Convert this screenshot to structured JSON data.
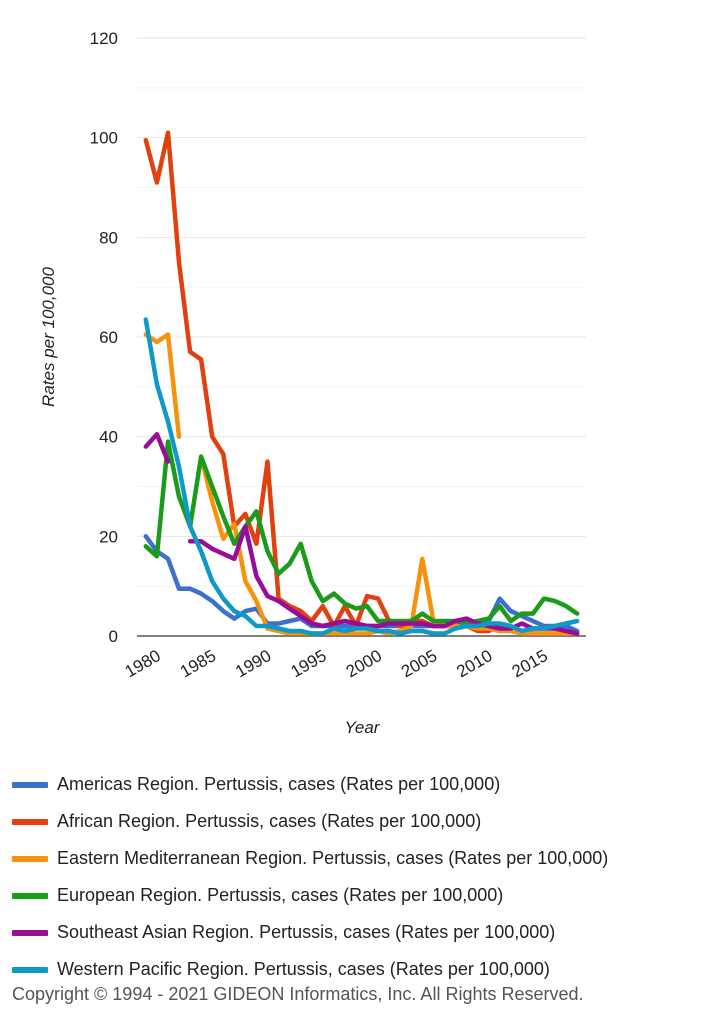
{
  "chart_data": {
    "type": "line",
    "title": "",
    "xlabel": "Year",
    "ylabel": "Rates per 100,000",
    "xlim": [
      1980,
      2019
    ],
    "ylim": [
      0,
      120
    ],
    "y_ticks": [
      "0",
      "20",
      "40",
      "60",
      "80",
      "100",
      "120"
    ],
    "x_ticks": [
      "1980",
      "1985",
      "1990",
      "1995",
      "2000",
      "2005",
      "2010",
      "2015"
    ],
    "grid": true,
    "legend_position": "bottom",
    "x": [
      1980,
      1981,
      1982,
      1983,
      1984,
      1985,
      1986,
      1987,
      1988,
      1989,
      1990,
      1991,
      1992,
      1993,
      1994,
      1995,
      1996,
      1997,
      1998,
      1999,
      2000,
      2001,
      2002,
      2003,
      2004,
      2005,
      2006,
      2007,
      2008,
      2009,
      2010,
      2011,
      2012,
      2013,
      2014,
      2015,
      2016,
      2017,
      2018,
      2019
    ],
    "series": [
      {
        "name": "Americas Region. Pertussis, cases (Rates per 100,000)",
        "color": "#3d6fcc",
        "values": [
          20,
          17,
          15.5,
          9.5,
          9.5,
          8.5,
          7,
          5,
          3.5,
          5,
          5.5,
          2.5,
          2.5,
          3,
          3.5,
          2,
          2,
          2,
          2,
          2,
          2,
          2,
          2,
          2,
          2,
          2,
          2,
          2,
          2,
          2,
          2.5,
          3,
          7.5,
          5,
          4,
          3,
          2,
          2,
          2,
          1
        ]
      },
      {
        "name": "African Region. Pertussis, cases (Rates per 100,000)",
        "color": "#e2400f",
        "values": [
          99.5,
          91,
          101,
          75,
          57,
          55.5,
          40,
          36.5,
          22,
          24.5,
          18.5,
          35,
          7.5,
          6,
          5,
          3,
          6,
          2,
          6,
          2,
          8,
          7.5,
          3,
          2,
          3,
          3,
          2,
          2,
          2,
          2,
          1,
          1,
          2,
          1.5,
          1,
          0.5,
          0.5,
          0.5,
          0.5,
          0.5
        ]
      },
      {
        "name": "Eastern Mediterranean Region. Pertussis, cases (Rates per 100,000)",
        "color": "#f7920d",
        "values": [
          60.5,
          59,
          60.5,
          40,
          null,
          36,
          27,
          19.5,
          22.5,
          11,
          7,
          1.5,
          1,
          0.5,
          0.5,
          0.5,
          0.5,
          0.5,
          0.5,
          0.5,
          0.5,
          1,
          0.5,
          1,
          2,
          15.5,
          3,
          2,
          2,
          2,
          1.5,
          1.5,
          1,
          1,
          0.5,
          0.5,
          0.5,
          0.5,
          0.5,
          0.5
        ]
      },
      {
        "name": "European Region. Pertussis, cases (Rates per 100,000)",
        "color": "#1a9c1a",
        "values": [
          18,
          16,
          39,
          28,
          22,
          36,
          30,
          24,
          18.5,
          22,
          25,
          17,
          12.5,
          14.5,
          18.5,
          11,
          7,
          8.5,
          6.5,
          5.5,
          6,
          3,
          3,
          3,
          3,
          4.5,
          3,
          3,
          3,
          2.5,
          3,
          3.5,
          6,
          3,
          4.5,
          4.5,
          7.5,
          7,
          6,
          4.5
        ]
      },
      {
        "name": "Southeast Asian Region. Pertussis, cases (Rates per 100,000)",
        "color": "#970c99",
        "values": [
          38,
          40.5,
          35,
          null,
          19,
          19,
          17.5,
          16.5,
          15.5,
          22,
          12,
          8,
          7,
          5.5,
          4,
          2.5,
          2,
          2.5,
          3,
          2.5,
          2,
          2,
          2.5,
          2.5,
          2.5,
          2.5,
          2,
          2,
          3,
          3.5,
          2.5,
          2,
          1.5,
          1.5,
          2.5,
          1.5,
          1.5,
          1.5,
          1,
          0.5
        ]
      },
      {
        "name": "Western Pacific Region. Pertussis, cases (Rates per 100,000)",
        "color": "#0e99c6",
        "values": [
          63.5,
          50.5,
          43,
          34,
          22,
          17,
          11,
          7.5,
          5,
          4,
          2,
          2,
          1.5,
          1,
          1,
          0.5,
          0.5,
          1.5,
          1,
          1.5,
          1.5,
          1,
          1,
          0.5,
          1,
          1,
          0.5,
          0.5,
          1.5,
          2,
          2,
          2.5,
          2.5,
          2,
          1,
          1.5,
          1.5,
          2,
          2.5,
          3
        ]
      }
    ]
  },
  "copyright": "Copyright © 1994 - 2021 GIDEON Informatics, Inc. All Rights Reserved."
}
